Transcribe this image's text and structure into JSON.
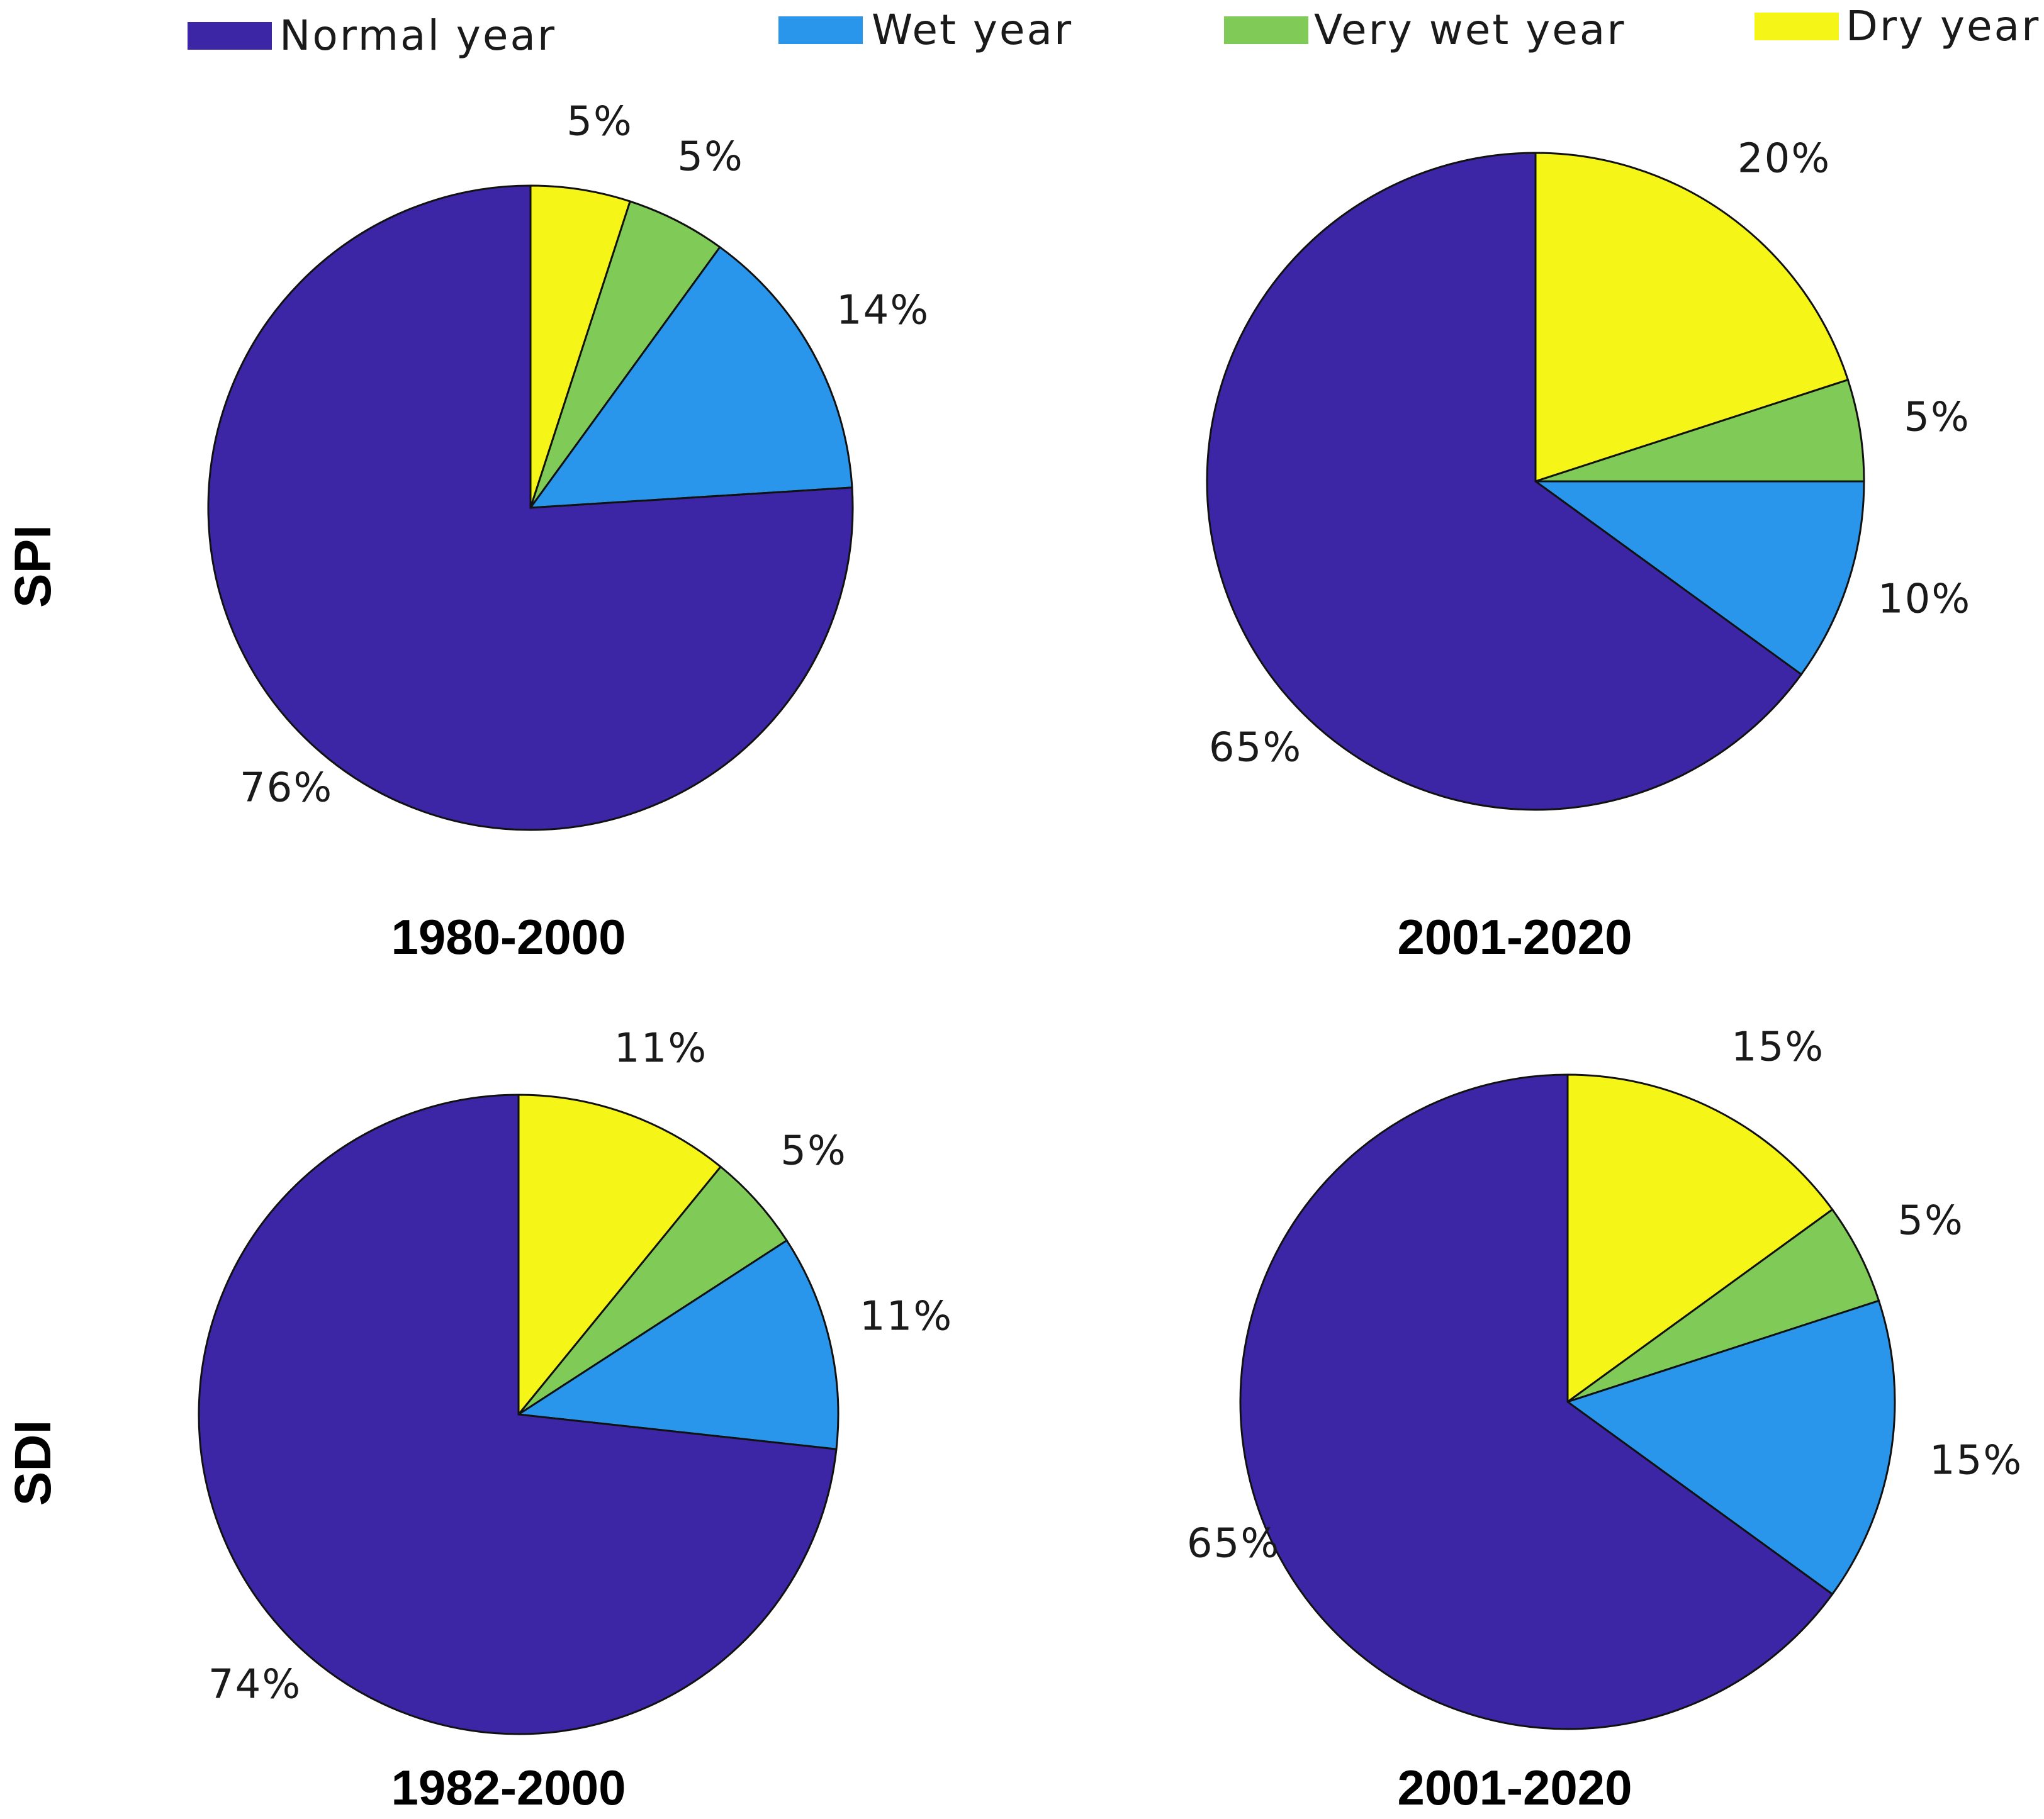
{
  "colors": {
    "Normal year": "#3C26A6",
    "Wet year": "#2996EB",
    "Very wet year": "#80CB57",
    "Dry year": "#F5F518"
  },
  "legend": [
    "Normal year",
    "Wet year",
    "Very wet year",
    "Dry year"
  ],
  "row_labels": [
    "SPI",
    "SDI"
  ],
  "chart_data": [
    {
      "type": "pie",
      "title": "1980-2000",
      "row": "SPI",
      "categories": [
        "Dry year",
        "Very wet year",
        "Wet year",
        "Normal year"
      ],
      "values": [
        5,
        5,
        14,
        76
      ],
      "labels": [
        "5%",
        "5%",
        "14%",
        "76%"
      ],
      "start": "12 o'clock",
      "direction": "clockwise"
    },
    {
      "type": "pie",
      "title": "2001-2020",
      "row": "SPI",
      "categories": [
        "Dry year",
        "Very wet year",
        "Wet year",
        "Normal year"
      ],
      "values": [
        20,
        5,
        10,
        65
      ],
      "labels": [
        "20%",
        "5%",
        "10%",
        "65%"
      ],
      "start": "12 o'clock",
      "direction": "clockwise"
    },
    {
      "type": "pie",
      "title": "1982-2000",
      "row": "SDI",
      "categories": [
        "Dry year",
        "Very wet year",
        "Wet year",
        "Normal year"
      ],
      "values": [
        11,
        5,
        11,
        74
      ],
      "labels": [
        "11%",
        "5%",
        "11%",
        "74%"
      ],
      "start": "12 o'clock",
      "direction": "clockwise"
    },
    {
      "type": "pie",
      "title": "2001-2020",
      "row": "SDI",
      "categories": [
        "Dry year",
        "Very wet year",
        "Wet year",
        "Normal year"
      ],
      "values": [
        15,
        5,
        15,
        65
      ],
      "labels": [
        "15%",
        "5%",
        "15%",
        "65%"
      ],
      "start": "12 o'clock",
      "direction": "clockwise"
    }
  ]
}
